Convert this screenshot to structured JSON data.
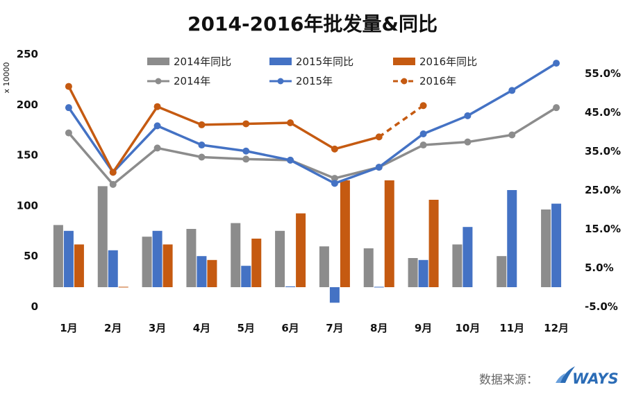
{
  "chart_data": {
    "type": "bar",
    "title": "2014-2016年批发量&同比",
    "categories": [
      "1月",
      "2月",
      "3月",
      "4月",
      "5月",
      "6月",
      "7月",
      "8月",
      "9月",
      "10月",
      "11月",
      "12月"
    ],
    "y_left": {
      "unit_label": "x 10000",
      "range": [
        0,
        250
      ],
      "ticks": [
        "0",
        "50",
        "100",
        "150",
        "200",
        "250"
      ]
    },
    "y_right": {
      "range": [
        -0.05,
        0.6
      ],
      "ticks": [
        "-5.0%",
        "5.0%",
        "15.0%",
        "25.0%",
        "35.0%",
        "45.0%",
        "55.0%"
      ]
    },
    "bar_series": [
      {
        "name": "2014年同比",
        "color": "#8c8c8c",
        "axis": "right",
        "values": [
          0.16,
          0.26,
          0.13,
          0.15,
          0.165,
          0.145,
          0.105,
          0.1,
          0.075,
          0.11,
          0.08,
          0.2
        ]
      },
      {
        "name": "2015年同比",
        "color": "#4472c4",
        "axis": "right",
        "values": [
          0.145,
          0.095,
          0.145,
          0.08,
          0.055,
          0.002,
          -0.04,
          0.001,
          0.07,
          0.155,
          0.25,
          0.215
        ]
      },
      {
        "name": "2016年同比",
        "color": "#c55a11",
        "axis": "right",
        "values": [
          0.11,
          0.001,
          0.11,
          0.07,
          0.125,
          0.19,
          0.275,
          0.275,
          0.225
        ]
      }
    ],
    "line_series": [
      {
        "name": "2014年",
        "color": "#8c8c8c",
        "axis": "left",
        "dash_last": false,
        "values": [
          172,
          121,
          157,
          148,
          146,
          145,
          127,
          138,
          160,
          163,
          170,
          197
        ]
      },
      {
        "name": "2015年",
        "color": "#4472c4",
        "axis": "left",
        "dash_last": false,
        "values": [
          197,
          133,
          179,
          160,
          154,
          145,
          122,
          138,
          171,
          189,
          214,
          241
        ]
      },
      {
        "name": "2016年",
        "color": "#c55a11",
        "axis": "left",
        "dash_last": true,
        "values": [
          218,
          133,
          198,
          180,
          181,
          182,
          156,
          168,
          199
        ]
      }
    ],
    "legend_position": "top",
    "grid": false
  },
  "source": {
    "label": "数据来源：",
    "logo_text": "WAYS",
    "logo_color": "#2b6cb6"
  }
}
